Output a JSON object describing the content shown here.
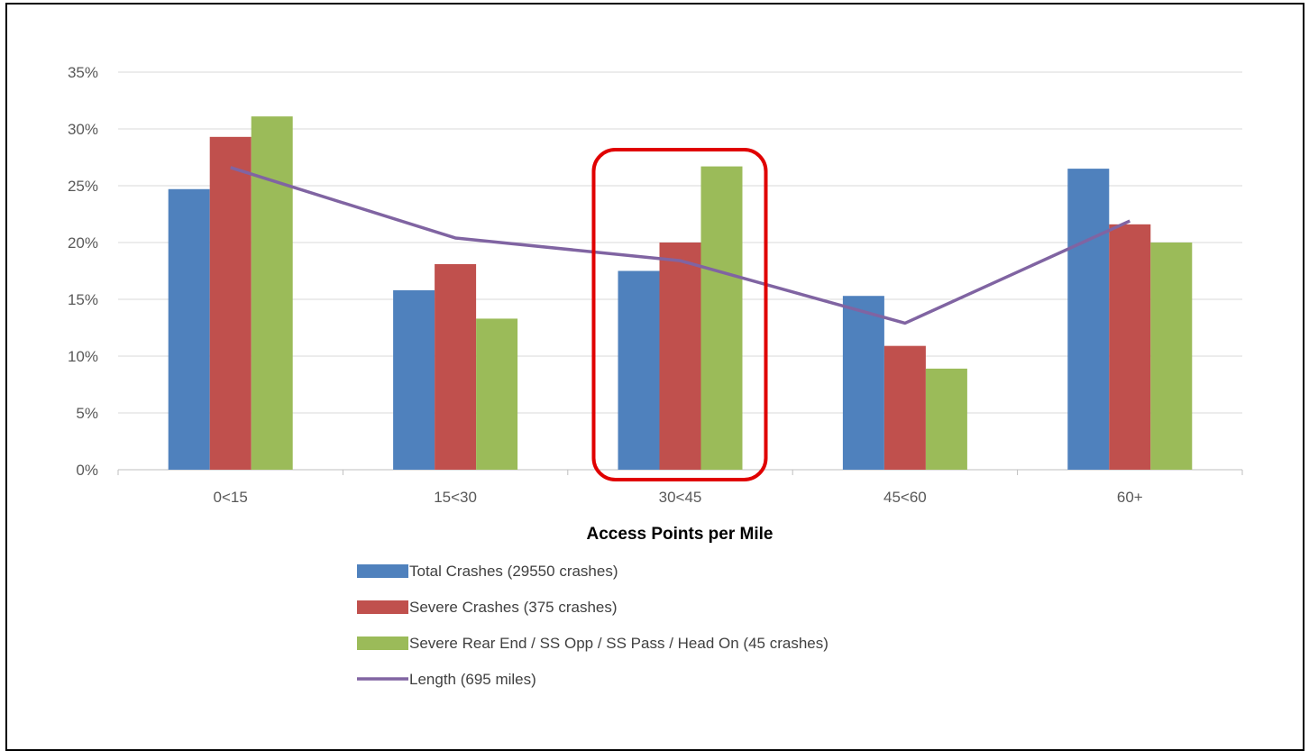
{
  "chart_data": {
    "type": "bar",
    "title": "",
    "xlabel": "Access Points per Mile",
    "ylabel": "",
    "categories": [
      "0<15",
      "15<30",
      "30<45",
      "45<60",
      "60+"
    ],
    "ylim": [
      0,
      35
    ],
    "y_ticks": [
      "0%",
      "5%",
      "10%",
      "15%",
      "20%",
      "25%",
      "30%",
      "35%"
    ],
    "grid": true,
    "legend_position": "bottom",
    "series": [
      {
        "name": "Total Crashes (29550 crashes)",
        "kind": "bar",
        "color": "#4F81BD",
        "values": [
          24.7,
          15.8,
          17.5,
          15.3,
          26.5
        ]
      },
      {
        "name": "Severe Crashes (375 crashes)",
        "kind": "bar",
        "color": "#C0504D",
        "values": [
          29.3,
          18.1,
          20.0,
          10.9,
          21.6
        ]
      },
      {
        "name": "Severe Rear End / SS Opp / SS Pass / Head On (45 crashes)",
        "kind": "bar",
        "color": "#9BBB59",
        "values": [
          31.1,
          13.3,
          26.7,
          8.9,
          20.0
        ]
      },
      {
        "name": "Length (695 miles)",
        "kind": "line",
        "color": "#8064A2",
        "values": [
          26.6,
          20.4,
          18.4,
          12.9,
          21.9
        ]
      }
    ],
    "highlight": {
      "category": "30<45",
      "color": "#E00000"
    }
  }
}
